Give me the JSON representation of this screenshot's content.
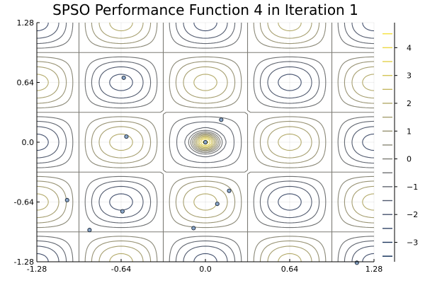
{
  "chart_data": {
    "type": "contour",
    "title": "SPSO Performance Function 4 in Iteration 1",
    "x_ticks": [
      "-1.28",
      "-0.64",
      "0.0",
      "0.64",
      "1.28"
    ],
    "y_ticks": [
      "1.28",
      "0.64",
      "0.0",
      "-0.64",
      "-1.28"
    ],
    "xlim": [
      -1.28,
      1.28
    ],
    "ylim": [
      -1.28,
      1.28
    ],
    "grid": true,
    "colorbar": {
      "ticks": [
        "4",
        "3",
        "2",
        "1",
        "0",
        "−1",
        "−2",
        "−3"
      ],
      "range": [
        -3.7,
        4.9
      ],
      "colors": [
        "#00224e",
        "#3c4b6d",
        "#666970",
        "#8d8a78",
        "#b5ac6b",
        "#e2d04d",
        "#fee838"
      ]
    },
    "contour_levels": [
      -3.5,
      -3.0,
      -2.5,
      -2.0,
      -1.5,
      -1.0,
      -0.5,
      0.0,
      0.5,
      1.0,
      1.5,
      2.0,
      2.5,
      3.0,
      3.5,
      4.0,
      4.5
    ],
    "particles": [
      {
        "x": -0.62,
        "y": 0.69
      },
      {
        "x": -0.6,
        "y": 0.06
      },
      {
        "x": 0.12,
        "y": 0.24
      },
      {
        "x": 0.18,
        "y": -0.52
      },
      {
        "x": 0.09,
        "y": -0.66
      },
      {
        "x": -1.05,
        "y": -0.62
      },
      {
        "x": -0.63,
        "y": -0.74
      },
      {
        "x": -0.88,
        "y": -0.94
      },
      {
        "x": -0.09,
        "y": -0.92
      },
      {
        "x": 0.0,
        "y": 0.0
      },
      {
        "x": 0.0,
        "y": 0.0
      },
      {
        "x": 1.15,
        "y": -1.29
      }
    ]
  }
}
